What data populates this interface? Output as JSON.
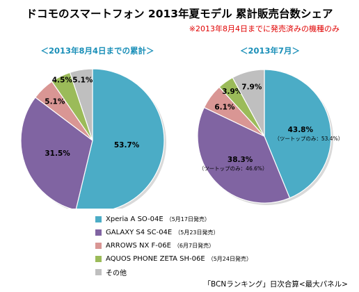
{
  "title": "ドコモのスマートフォン 2013年夏モデル 累計販売台数シェア",
  "note": "※2013年8月4日までに発売済みの機種のみ",
  "source": "「BCNランキング」日次合算<最大パネル>",
  "colors": {
    "xperia": "#4bacc6",
    "galaxy": "#8064a2",
    "arrows": "#d99694",
    "aquos": "#9bbb59",
    "other": "#bfbfbf",
    "subtitle": "#1a8fb8"
  },
  "legend": [
    {
      "name": "Xperia A SO-04E",
      "date": "（5月17日発売）",
      "color_key": "xperia"
    },
    {
      "name": "GALAXY S4 SC-04E",
      "date": "（5月23日発売）",
      "color_key": "galaxy"
    },
    {
      "name": "ARROWS NX F-06E",
      "date": "（6月7日発売）",
      "color_key": "arrows"
    },
    {
      "name": "AQUOS PHONE ZETA SH-06E",
      "date": "（5月24日発売）",
      "color_key": "aquos"
    },
    {
      "name": "その他",
      "date": "",
      "color_key": "other"
    }
  ],
  "chart_data": [
    {
      "type": "pie",
      "title": "＜2013年8月4日までの累計＞",
      "categories": [
        "Xperia A SO-04E",
        "GALAXY S4 SC-04E",
        "ARROWS NX F-06E",
        "AQUOS PHONE ZETA SH-06E",
        "その他"
      ],
      "values": [
        53.7,
        31.5,
        5.1,
        4.5,
        5.1
      ],
      "labels": [
        "53.7%",
        "31.5%",
        "5.1%",
        "4.5%",
        "5.1%"
      ],
      "annotations": []
    },
    {
      "type": "pie",
      "title": "＜2013年7月＞",
      "categories": [
        "Xperia A SO-04E",
        "GALAXY S4 SC-04E",
        "ARROWS NX F-06E",
        "AQUOS PHONE ZETA SH-06E",
        "その他"
      ],
      "values": [
        43.8,
        38.3,
        6.1,
        3.9,
        7.9
      ],
      "labels": [
        "43.8%",
        "38.3%",
        "6.1%",
        "3.9%",
        "7.9%"
      ],
      "annotations": [
        {
          "category": "Xperia A SO-04E",
          "text": "（ツートップのみ：53.4%）"
        },
        {
          "category": "GALAXY S4 SC-04E",
          "text": "（ツートップのみ：46.6%）"
        }
      ]
    }
  ]
}
